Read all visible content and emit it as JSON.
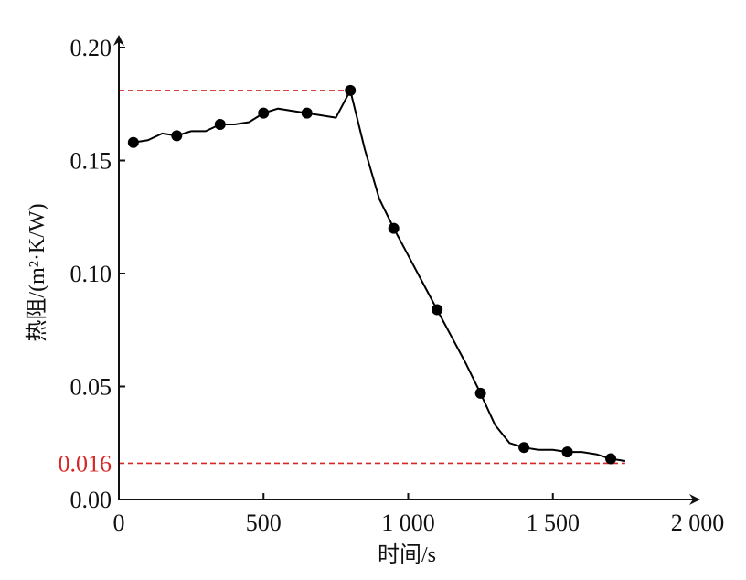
{
  "chart_data": {
    "type": "line",
    "xlabel": "时间/s",
    "ylabel": "热阻/(m²·K/W)",
    "xlim": [
      0,
      2000
    ],
    "ylim": [
      0,
      0.2
    ],
    "x_ticks": [
      {
        "value": 0,
        "label": "0"
      },
      {
        "value": 500,
        "label": "500"
      },
      {
        "value": 1000,
        "label": "1 000"
      },
      {
        "value": 1500,
        "label": "1 500"
      },
      {
        "value": 2000,
        "label": "2 000"
      }
    ],
    "y_ticks": [
      {
        "value": 0,
        "label": "0.00"
      },
      {
        "value": 0.05,
        "label": "0.05"
      },
      {
        "value": 0.1,
        "label": "0.10"
      },
      {
        "value": 0.15,
        "label": "0.15"
      },
      {
        "value": 0.2,
        "label": "0.20"
      }
    ],
    "grid": false,
    "legend": "none",
    "line": {
      "color": "#000000",
      "x": [
        50,
        100,
        150,
        200,
        250,
        300,
        350,
        400,
        450,
        500,
        550,
        600,
        650,
        700,
        750,
        800,
        850,
        900,
        950,
        1000,
        1050,
        1100,
        1150,
        1200,
        1250,
        1300,
        1350,
        1400,
        1450,
        1500,
        1550,
        1600,
        1650,
        1700,
        1750
      ],
      "y": [
        0.158,
        0.159,
        0.162,
        0.161,
        0.163,
        0.163,
        0.166,
        0.166,
        0.167,
        0.171,
        0.173,
        0.172,
        0.171,
        0.17,
        0.169,
        0.181,
        0.155,
        0.133,
        0.12,
        0.108,
        0.096,
        0.084,
        0.072,
        0.06,
        0.047,
        0.033,
        0.025,
        0.023,
        0.022,
        0.022,
        0.021,
        0.021,
        0.02,
        0.018,
        0.017
      ]
    },
    "markers": {
      "color": "#000000",
      "x": [
        50,
        200,
        350,
        500,
        650,
        800,
        950,
        1100,
        1250,
        1400,
        1550,
        1700
      ],
      "y": [
        0.158,
        0.161,
        0.166,
        0.171,
        0.171,
        0.181,
        0.12,
        0.084,
        0.047,
        0.023,
        0.021,
        0.018
      ]
    },
    "reference_lines": [
      {
        "value": 0.181,
        "x_end": 800,
        "color": "#d62728",
        "style": "dashed",
        "label": ""
      },
      {
        "value": 0.016,
        "x_end": 1750,
        "color": "#d62728",
        "style": "dashed",
        "label": "0.016"
      }
    ]
  }
}
